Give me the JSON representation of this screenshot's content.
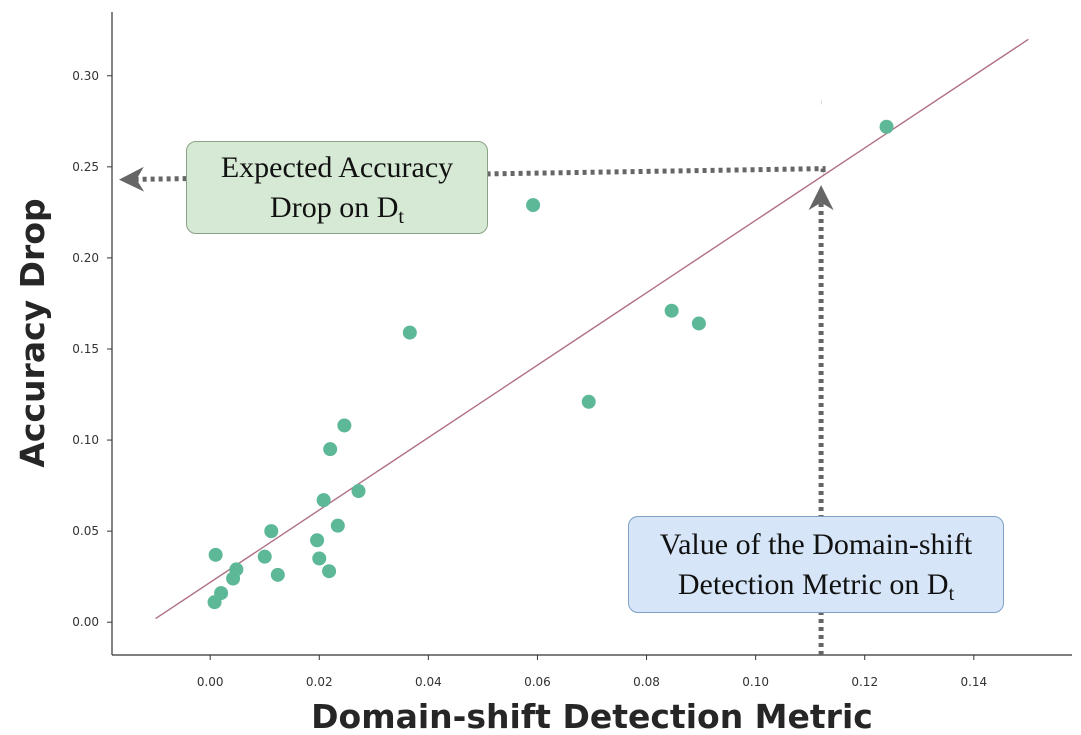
{
  "chart_data": {
    "type": "scatter",
    "xlabel": "Domain-shift Detection Metric",
    "ylabel": "Accuracy Drop",
    "xlim": [
      -0.018,
      0.158
    ],
    "ylim": [
      -0.018,
      0.335
    ],
    "x_ticks": [
      "0.00",
      "0.02",
      "0.04",
      "0.06",
      "0.08",
      "0.10",
      "0.12",
      "0.14"
    ],
    "y_ticks": [
      "0.00",
      "0.05",
      "0.10",
      "0.15",
      "0.20",
      "0.25",
      "0.30"
    ],
    "point_color": "#5cb896",
    "fit_line_color": "#b07084",
    "fit_line": {
      "x": [
        -0.01,
        0.15
      ],
      "y": [
        0.002,
        0.32
      ]
    },
    "points": [
      {
        "x": 0.0008,
        "y": 0.011
      },
      {
        "x": 0.002,
        "y": 0.016
      },
      {
        "x": 0.001,
        "y": 0.037
      },
      {
        "x": 0.0042,
        "y": 0.024
      },
      {
        "x": 0.0048,
        "y": 0.029
      },
      {
        "x": 0.01,
        "y": 0.036
      },
      {
        "x": 0.0112,
        "y": 0.05
      },
      {
        "x": 0.0124,
        "y": 0.026
      },
      {
        "x": 0.0196,
        "y": 0.045
      },
      {
        "x": 0.02,
        "y": 0.035
      },
      {
        "x": 0.0208,
        "y": 0.067
      },
      {
        "x": 0.0218,
        "y": 0.028
      },
      {
        "x": 0.022,
        "y": 0.095
      },
      {
        "x": 0.0234,
        "y": 0.053
      },
      {
        "x": 0.0246,
        "y": 0.108
      },
      {
        "x": 0.0272,
        "y": 0.072
      },
      {
        "x": 0.0366,
        "y": 0.159
      },
      {
        "x": 0.0592,
        "y": 0.229
      },
      {
        "x": 0.0694,
        "y": 0.121
      },
      {
        "x": 0.0846,
        "y": 0.171
      },
      {
        "x": 0.0896,
        "y": 0.164
      },
      {
        "x": 0.124,
        "y": 0.272
      }
    ],
    "target_x": 0.112,
    "target_y": 0.246,
    "annotations": {
      "expected": {
        "text": "Expected Accuracy Drop on D",
        "subscript": "t"
      },
      "value": {
        "text": "Value of the Domain-shift Detection Metric on D",
        "subscript": "t"
      }
    },
    "grid": false,
    "legend": "none"
  }
}
